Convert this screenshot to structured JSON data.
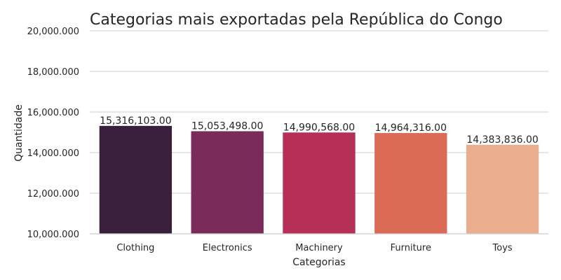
{
  "chart_data": {
    "type": "bar",
    "title": "Categorias mais exportadas pela República do Congo",
    "xlabel": "Categorias",
    "ylabel": "Quantidade",
    "categories": [
      "Clothing",
      "Electronics",
      "Machinery",
      "Furniture",
      "Toys"
    ],
    "values": [
      15316103.0,
      15053498.0,
      14990568.0,
      14964316.0,
      14383836.0
    ],
    "value_labels": [
      "15,316,103.00",
      "15,053,498.00",
      "14,990,568.00",
      "14,964,316.00",
      "14,383,836.00"
    ],
    "ylim": [
      10000000,
      20000000
    ],
    "yticks": [
      10000000,
      12000000,
      14000000,
      16000000,
      18000000,
      20000000
    ],
    "ytick_labels": [
      "10,000.000",
      "12,000.000",
      "14,000.000",
      "16,000.000",
      "18,000.000",
      "20,000.000"
    ],
    "colors": [
      "#3a1f3c",
      "#7a2b5a",
      "#b52f57",
      "#dc6b55",
      "#eaad8e"
    ],
    "grid": true,
    "legend": "none"
  }
}
